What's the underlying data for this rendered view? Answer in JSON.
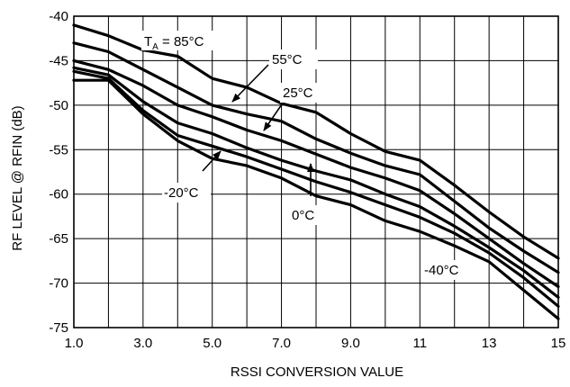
{
  "chart_data": {
    "type": "line",
    "title": "",
    "xlabel": "RSSI CONVERSION VALUE",
    "ylabel": "RF LEVEL @ RFIN (dB)",
    "xlim": [
      1,
      15
    ],
    "ylim": [
      -75,
      -40
    ],
    "xticks": [
      1,
      3,
      5,
      7,
      9,
      11,
      13,
      15
    ],
    "xtick_labels": [
      "1.0",
      "3.0",
      "5.0",
      "7.0",
      "9.0",
      "11",
      "13",
      "15"
    ],
    "yticks": [
      -75,
      -70,
      -65,
      -60,
      -55,
      -50,
      -45,
      -40
    ],
    "ytick_labels": [
      "-75",
      "-70",
      "-65",
      "-60",
      "-55",
      "-50",
      "-45",
      "-40"
    ],
    "grid": true,
    "legend": "none",
    "line_color": "#000000",
    "series": [
      {
        "label_text": "85°C",
        "x": [
          1,
          2,
          3,
          4,
          5,
          6,
          7,
          8,
          9,
          10,
          11,
          12,
          13,
          14,
          15
        ],
        "y": [
          -41,
          -42.2,
          -43.8,
          -44.5,
          -47,
          -48,
          -49.8,
          -50.8,
          -53.2,
          -55.2,
          -56.2,
          -59,
          -62,
          -64.8,
          -67.2
        ]
      },
      {
        "label_text": "55°C",
        "x": [
          1,
          2,
          3,
          4,
          5,
          6,
          7,
          8,
          9,
          10,
          11,
          12,
          13,
          14,
          15
        ],
        "y": [
          -43,
          -44,
          -46,
          -48,
          -50,
          -51,
          -51.8,
          -53.8,
          -55.4,
          -56.8,
          -57.8,
          -60.8,
          -63.8,
          -66.4,
          -68.8
        ]
      },
      {
        "label_text": "25°C",
        "x": [
          1,
          2,
          3,
          4,
          5,
          6,
          7,
          8,
          9,
          10,
          11,
          12,
          13,
          14,
          15
        ],
        "y": [
          -45,
          -46,
          -47.8,
          -50,
          -51.3,
          -52.8,
          -54,
          -55.5,
          -57,
          -58.2,
          -59.6,
          -62.2,
          -65,
          -67.8,
          -70.4
        ]
      },
      {
        "label_text": "0°C",
        "x": [
          1,
          2,
          3,
          4,
          5,
          6,
          7,
          8,
          9,
          10,
          11,
          12,
          13,
          14,
          15
        ],
        "y": [
          -45.8,
          -46.6,
          -49.6,
          -52,
          -53.2,
          -54.8,
          -56.2,
          -57.4,
          -58.4,
          -60,
          -61.4,
          -63.6,
          -66,
          -68.6,
          -71.6
        ]
      },
      {
        "label_text": "-20°C",
        "x": [
          1,
          2,
          3,
          4,
          5,
          6,
          7,
          8,
          9,
          10,
          11,
          12,
          13,
          14,
          15
        ],
        "y": [
          -46.2,
          -47,
          -50.6,
          -53.4,
          -54.6,
          -55.8,
          -57.2,
          -58.6,
          -59.8,
          -61.2,
          -62.6,
          -64.4,
          -66.6,
          -69.4,
          -72.6
        ]
      },
      {
        "label_text": "-40°C",
        "x": [
          1,
          2,
          3,
          4,
          5,
          6,
          7,
          8,
          9,
          10,
          11,
          12,
          13,
          14,
          15
        ],
        "y": [
          -47.2,
          -47.2,
          -51,
          -54,
          -56,
          -56.8,
          -58.2,
          -60.2,
          -61.2,
          -63,
          -64.2,
          -65.8,
          -67.6,
          -70.8,
          -74
        ]
      }
    ],
    "annotations": [
      {
        "id": "ta-85",
        "main": "T",
        "sub": "A",
        "rest": " = 85°C"
      },
      {
        "id": "t-55",
        "text": "55°C"
      },
      {
        "id": "t-25",
        "text": "25°C"
      },
      {
        "id": "t-n20",
        "text": "-20°C"
      },
      {
        "id": "t-0",
        "text": "0°C"
      },
      {
        "id": "t-n40",
        "text": "-40°C"
      }
    ]
  }
}
